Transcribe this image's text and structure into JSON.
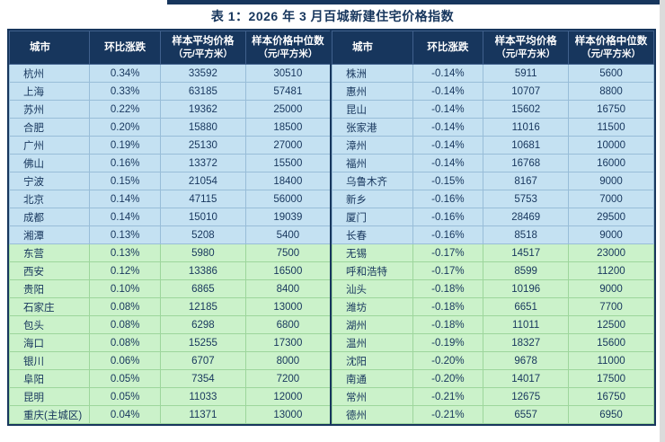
{
  "title": "表 1：2026 年 3 月百城新建住宅价格指数",
  "colors": {
    "header_bg": "#17365D",
    "row_blue": "#C4E1F2",
    "row_green": "#CBF2CA",
    "text": "#17365D"
  },
  "table": {
    "headers": [
      {
        "label": "城市",
        "sub": ""
      },
      {
        "label": "环比涨跌",
        "sub": ""
      },
      {
        "label": "样本平均价格",
        "sub": "（元/平方米）"
      },
      {
        "label": "样本价格中位数",
        "sub": "（元/平方米）"
      }
    ],
    "left_rows": [
      {
        "city": "杭州",
        "change": "0.34%",
        "avg": "33592",
        "median": "30510",
        "group": "blue"
      },
      {
        "city": "上海",
        "change": "0.33%",
        "avg": "63185",
        "median": "57481",
        "group": "blue"
      },
      {
        "city": "苏州",
        "change": "0.22%",
        "avg": "19362",
        "median": "25000",
        "group": "blue"
      },
      {
        "city": "合肥",
        "change": "0.20%",
        "avg": "15880",
        "median": "18500",
        "group": "blue"
      },
      {
        "city": "广州",
        "change": "0.19%",
        "avg": "25130",
        "median": "27000",
        "group": "blue"
      },
      {
        "city": "佛山",
        "change": "0.16%",
        "avg": "13372",
        "median": "15500",
        "group": "blue"
      },
      {
        "city": "宁波",
        "change": "0.15%",
        "avg": "21054",
        "median": "18400",
        "group": "blue"
      },
      {
        "city": "北京",
        "change": "0.14%",
        "avg": "47115",
        "median": "56000",
        "group": "blue"
      },
      {
        "city": "成都",
        "change": "0.14%",
        "avg": "15010",
        "median": "19039",
        "group": "blue"
      },
      {
        "city": "湘潭",
        "change": "0.13%",
        "avg": "5208",
        "median": "5400",
        "group": "blue"
      },
      {
        "city": "东营",
        "change": "0.13%",
        "avg": "5980",
        "median": "7500",
        "group": "green"
      },
      {
        "city": "西安",
        "change": "0.12%",
        "avg": "13386",
        "median": "16500",
        "group": "green"
      },
      {
        "city": "贵阳",
        "change": "0.10%",
        "avg": "6865",
        "median": "8400",
        "group": "green"
      },
      {
        "city": "石家庄",
        "change": "0.08%",
        "avg": "12185",
        "median": "13000",
        "group": "green"
      },
      {
        "city": "包头",
        "change": "0.08%",
        "avg": "6298",
        "median": "6800",
        "group": "green"
      },
      {
        "city": "海口",
        "change": "0.08%",
        "avg": "15255",
        "median": "17300",
        "group": "green"
      },
      {
        "city": "银川",
        "change": "0.06%",
        "avg": "6707",
        "median": "8000",
        "group": "green"
      },
      {
        "city": "阜阳",
        "change": "0.05%",
        "avg": "7354",
        "median": "7200",
        "group": "green"
      },
      {
        "city": "昆明",
        "change": "0.05%",
        "avg": "11033",
        "median": "12000",
        "group": "green"
      },
      {
        "city": "重庆(主城区)",
        "change": "0.04%",
        "avg": "11371",
        "median": "13000",
        "group": "green"
      }
    ],
    "right_rows": [
      {
        "city": "株洲",
        "change": "-0.14%",
        "avg": "5911",
        "median": "5600",
        "group": "blue"
      },
      {
        "city": "惠州",
        "change": "-0.14%",
        "avg": "10707",
        "median": "8800",
        "group": "blue"
      },
      {
        "city": "昆山",
        "change": "-0.14%",
        "avg": "15602",
        "median": "16750",
        "group": "blue"
      },
      {
        "city": "张家港",
        "change": "-0.14%",
        "avg": "11016",
        "median": "11500",
        "group": "blue"
      },
      {
        "city": "漳州",
        "change": "-0.14%",
        "avg": "10681",
        "median": "10000",
        "group": "blue"
      },
      {
        "city": "福州",
        "change": "-0.14%",
        "avg": "16768",
        "median": "16000",
        "group": "blue"
      },
      {
        "city": "乌鲁木齐",
        "change": "-0.15%",
        "avg": "8167",
        "median": "9000",
        "group": "blue"
      },
      {
        "city": "新乡",
        "change": "-0.16%",
        "avg": "5753",
        "median": "7000",
        "group": "blue"
      },
      {
        "city": "厦门",
        "change": "-0.16%",
        "avg": "28469",
        "median": "29500",
        "group": "blue"
      },
      {
        "city": "长春",
        "change": "-0.16%",
        "avg": "8518",
        "median": "9000",
        "group": "blue"
      },
      {
        "city": "无锡",
        "change": "-0.17%",
        "avg": "14517",
        "median": "23000",
        "group": "green"
      },
      {
        "city": "呼和浩特",
        "change": "-0.17%",
        "avg": "8599",
        "median": "11200",
        "group": "green"
      },
      {
        "city": "汕头",
        "change": "-0.18%",
        "avg": "10196",
        "median": "9000",
        "group": "green"
      },
      {
        "city": "潍坊",
        "change": "-0.18%",
        "avg": "6651",
        "median": "7700",
        "group": "green"
      },
      {
        "city": "湖州",
        "change": "-0.18%",
        "avg": "11011",
        "median": "12500",
        "group": "green"
      },
      {
        "city": "温州",
        "change": "-0.19%",
        "avg": "18327",
        "median": "15600",
        "group": "green"
      },
      {
        "city": "沈阳",
        "change": "-0.20%",
        "avg": "9678",
        "median": "11000",
        "group": "green"
      },
      {
        "city": "南通",
        "change": "-0.20%",
        "avg": "14017",
        "median": "17500",
        "group": "green"
      },
      {
        "city": "常州",
        "change": "-0.21%",
        "avg": "12675",
        "median": "16750",
        "group": "green"
      },
      {
        "city": "德州",
        "change": "-0.21%",
        "avg": "6557",
        "median": "6950",
        "group": "green"
      }
    ]
  }
}
